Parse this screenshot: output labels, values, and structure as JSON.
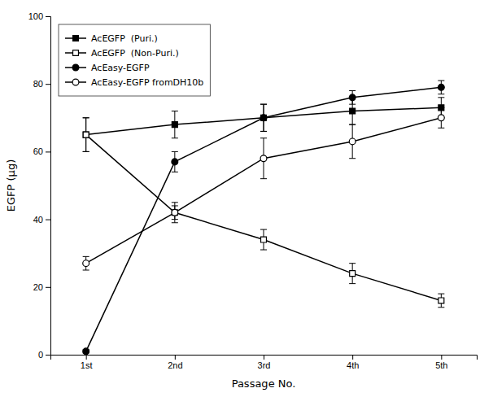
{
  "chart_data": {
    "type": "line",
    "xlabel": "Passage No.",
    "ylabel": "EGFP (μg)",
    "categories": [
      "1st",
      "2nd",
      "3rd",
      "4th",
      "5th"
    ],
    "series": [
      {
        "name": "AcEGFP  (Puri.)",
        "color": "black",
        "marker": "square",
        "line_style": "solid",
        "values": [
          65,
          68,
          70,
          72,
          73
        ],
        "errors": [
          5,
          4,
          4,
          4,
          3
        ]
      },
      {
        "name": "AcEGFP  (Non-Puri.)",
        "color": "black",
        "marker": "square-open",
        "line_style": "solid",
        "values": [
          65,
          42,
          34,
          24,
          16
        ],
        "errors": [
          5,
          3,
          3,
          3,
          2
        ]
      },
      {
        "name": "AcEasy-EGFP",
        "color": "black",
        "marker": "circle",
        "line_style": "solid",
        "values": [
          1,
          57,
          70,
          76,
          79
        ],
        "errors": [
          0.5,
          3,
          4,
          2,
          2
        ]
      },
      {
        "name": "AcEasy-EGFP fromDH10b",
        "color": "black",
        "marker": "circle-open",
        "line_style": "solid",
        "values": [
          27,
          42,
          58,
          63,
          70
        ],
        "errors": [
          2,
          2,
          6,
          5,
          3
        ]
      }
    ],
    "ylim": [
      0,
      100
    ],
    "yticks": [
      0,
      20,
      40,
      60,
      80,
      100
    ],
    "grid": false,
    "legend": "upper left"
  }
}
